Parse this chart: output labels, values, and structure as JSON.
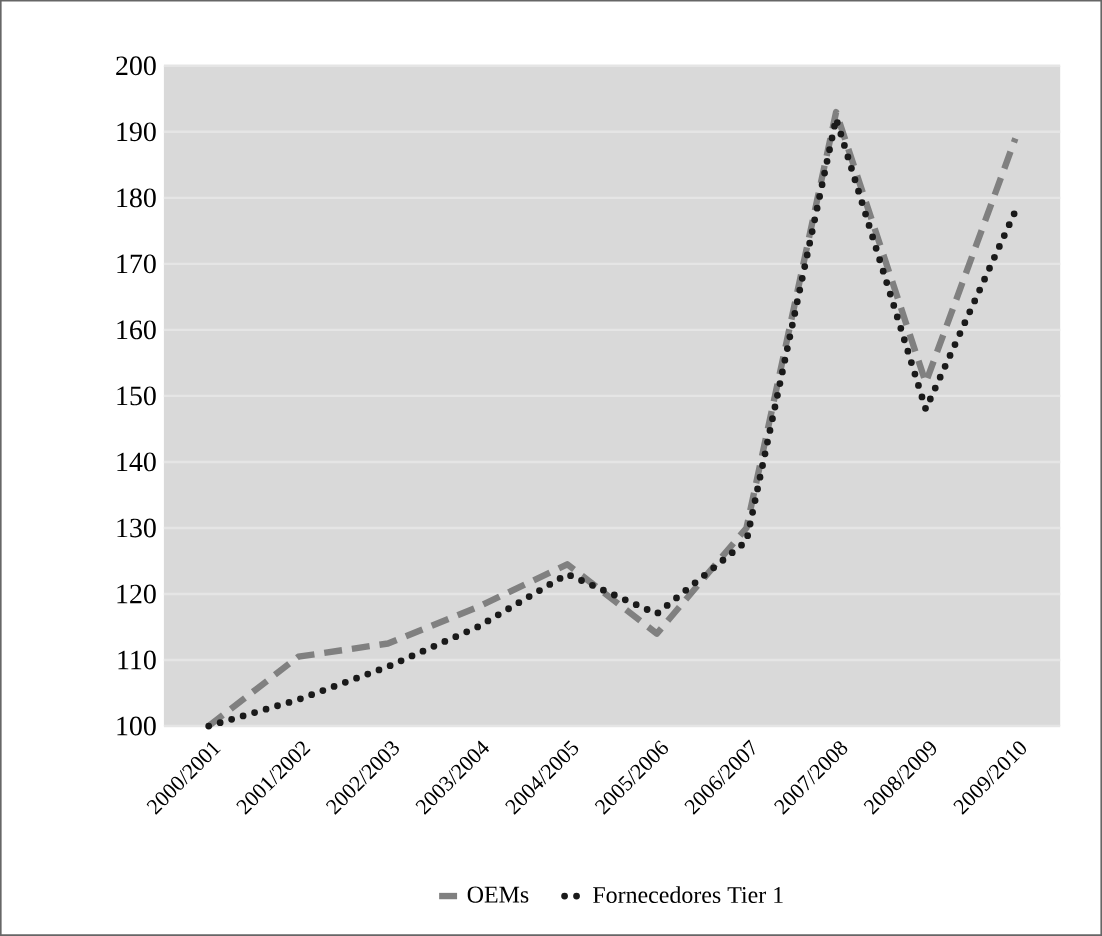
{
  "chart_data": {
    "type": "line",
    "categories": [
      "2000/2001",
      "2001/2002",
      "2002/2003",
      "2003/2004",
      "2004/2005",
      "2005/2006",
      "2006/2007",
      "2007/2008",
      "2008/2009",
      "2009/2010"
    ],
    "series": [
      {
        "name": "OEMs",
        "color": "#808080",
        "line_style": "dashed",
        "values": [
          100,
          110.5,
          112.5,
          118,
          124.5,
          114,
          130,
          193,
          152,
          189
        ]
      },
      {
        "name": "Fornecedores Tier 1",
        "color": "#1a1a1a",
        "line_style": "dotted",
        "values": [
          100,
          104,
          109,
          115,
          123,
          117,
          128,
          192,
          148,
          178
        ]
      }
    ],
    "ylim": [
      100,
      200
    ],
    "yticks": [
      100,
      110,
      120,
      130,
      140,
      150,
      160,
      170,
      180,
      190,
      200
    ],
    "grid": "y",
    "legend": "bottom",
    "marker": "none"
  }
}
